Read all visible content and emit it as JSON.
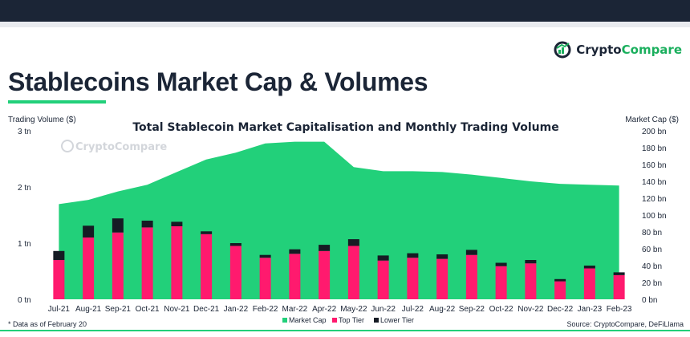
{
  "header": {
    "brand_part1": "Crypto",
    "brand_part2": "Compare",
    "page_title": "Stablecoins Market Cap & Volumes",
    "colors": {
      "navy": "#1b2536",
      "green": "#22d07a",
      "brand_green": "#1aaf5d"
    }
  },
  "chart_data": {
    "type": "bar+area",
    "title": "Total Stablecoin Market Capitalisation and Monthly Trading Volume",
    "ylabel_left": "Trading Volume ($)",
    "ylabel_right": "Market Cap ($)",
    "watermark": "CryptoCompare",
    "categories": [
      "Jul-21",
      "Aug-21",
      "Sep-21",
      "Oct-21",
      "Nov-21",
      "Dec-21",
      "Jan-22",
      "Feb-22",
      "Mar-22",
      "Apr-22",
      "May-22",
      "Jun-22",
      "Jul-22",
      "Aug-22",
      "Sep-22",
      "Oct-22",
      "Nov-22",
      "Dec-22",
      "Jan-23",
      "Feb-23"
    ],
    "left_axis": {
      "min": 0,
      "max": 3,
      "ticks": [
        0,
        1,
        2,
        3
      ],
      "tick_labels": [
        "0 tn",
        "1 tn",
        "2 tn",
        "3 tn"
      ]
    },
    "right_axis": {
      "min": 0,
      "max": 200,
      "ticks": [
        0,
        20,
        40,
        60,
        80,
        100,
        120,
        140,
        160,
        180,
        200
      ],
      "tick_labels": [
        "0 bn",
        "20 bn",
        "40 bn",
        "60 bn",
        "80 bn",
        "100 bn",
        "120 bn",
        "140 bn",
        "160 bn",
        "180 bn",
        "200 bn"
      ]
    },
    "series": [
      {
        "name": "Market Cap",
        "axis": "right",
        "kind": "area",
        "color": "#22d07a",
        "values": [
          113,
          118,
          128,
          136,
          151,
          166,
          174,
          185,
          187,
          187,
          157,
          152,
          152,
          151,
          148,
          144,
          140,
          137,
          136,
          135
        ]
      },
      {
        "name": "Top Tier",
        "axis": "left",
        "kind": "bar",
        "color": "#ff1a6e",
        "values": [
          0.7,
          1.1,
          1.19,
          1.28,
          1.3,
          1.16,
          0.95,
          0.74,
          0.81,
          0.86,
          0.95,
          0.69,
          0.74,
          0.72,
          0.79,
          0.59,
          0.64,
          0.32,
          0.55,
          0.43
        ]
      },
      {
        "name": "Lower Tier",
        "axis": "left",
        "kind": "bar",
        "color": "#161b24",
        "values": [
          0.16,
          0.21,
          0.25,
          0.12,
          0.08,
          0.05,
          0.05,
          0.05,
          0.08,
          0.11,
          0.12,
          0.09,
          0.08,
          0.08,
          0.09,
          0.06,
          0.06,
          0.04,
          0.05,
          0.05
        ]
      }
    ],
    "legend": "bottom-center",
    "footnote": "* Data as of February 20",
    "source": "Source: CryptoCompare, DeFiLlama"
  }
}
